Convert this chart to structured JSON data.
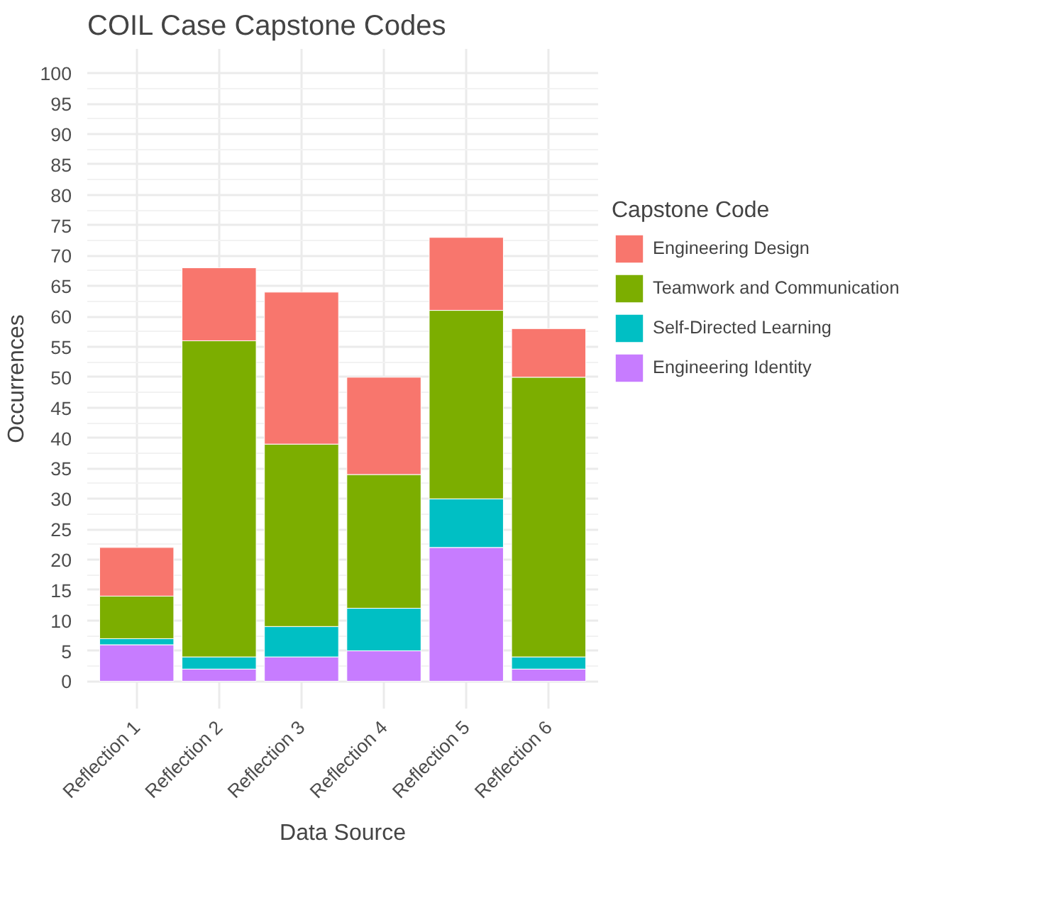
{
  "chart_data": {
    "type": "bar",
    "title": "COIL Case Capstone Codes",
    "xlabel": "Data Source",
    "ylabel": "Occurrences",
    "legend_title": "Capstone Code",
    "categories": [
      "Reflection 1",
      "Reflection 2",
      "Reflection 3",
      "Reflection 4",
      "Reflection 5",
      "Reflection 6"
    ],
    "stacked": true,
    "series": [
      {
        "name": "Engineering Identity",
        "color": "#c77cff",
        "values": [
          6,
          2,
          4,
          5,
          22,
          2
        ]
      },
      {
        "name": "Self-Directed Learning",
        "color": "#00bfc4",
        "values": [
          1,
          2,
          5,
          7,
          8,
          2
        ]
      },
      {
        "name": "Teamwork and Communication",
        "color": "#7cae00",
        "values": [
          7,
          52,
          30,
          22,
          31,
          46
        ]
      },
      {
        "name": "Engineering Design",
        "color": "#f8766d",
        "values": [
          8,
          12,
          25,
          16,
          12,
          8
        ]
      }
    ],
    "ylim": [
      -4.5,
      104
    ],
    "yticks": [
      0,
      5,
      10,
      15,
      20,
      25,
      30,
      35,
      40,
      45,
      50,
      55,
      60,
      65,
      70,
      75,
      80,
      85,
      90,
      95,
      100
    ],
    "grid": true,
    "legend": "right"
  }
}
